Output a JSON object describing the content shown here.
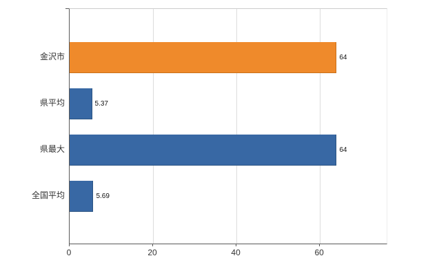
{
  "chart_data": {
    "type": "bar",
    "orientation": "horizontal",
    "title": "",
    "xlabel": "",
    "ylabel": "",
    "legend": "none",
    "grid": true,
    "categories": [
      "金沢市",
      "県平均",
      "県最大",
      "全国平均"
    ],
    "values": [
      64,
      5.37,
      64,
      5.69
    ],
    "value_labels": [
      "64",
      "5.37",
      "64",
      "5.69"
    ],
    "series_colors": [
      "#ef8a2b",
      "#3868a4",
      "#3868a4",
      "#3868a4"
    ],
    "bar_border_colors": [
      "#c9701a",
      "#2a5382",
      "#2a5382",
      "#2a5382"
    ],
    "xlim": [
      0,
      76
    ],
    "x_tick_labels": [
      "0",
      "20",
      "40",
      "60"
    ],
    "x_tick_values": [
      0,
      20,
      40,
      60
    ]
  },
  "colors": {
    "background": "#ffffff",
    "axis": "#595959",
    "gridline": "#dcdcdc",
    "plot_top_border": "#cccccc",
    "label_text": "#333333",
    "value_text": "#111111"
  }
}
